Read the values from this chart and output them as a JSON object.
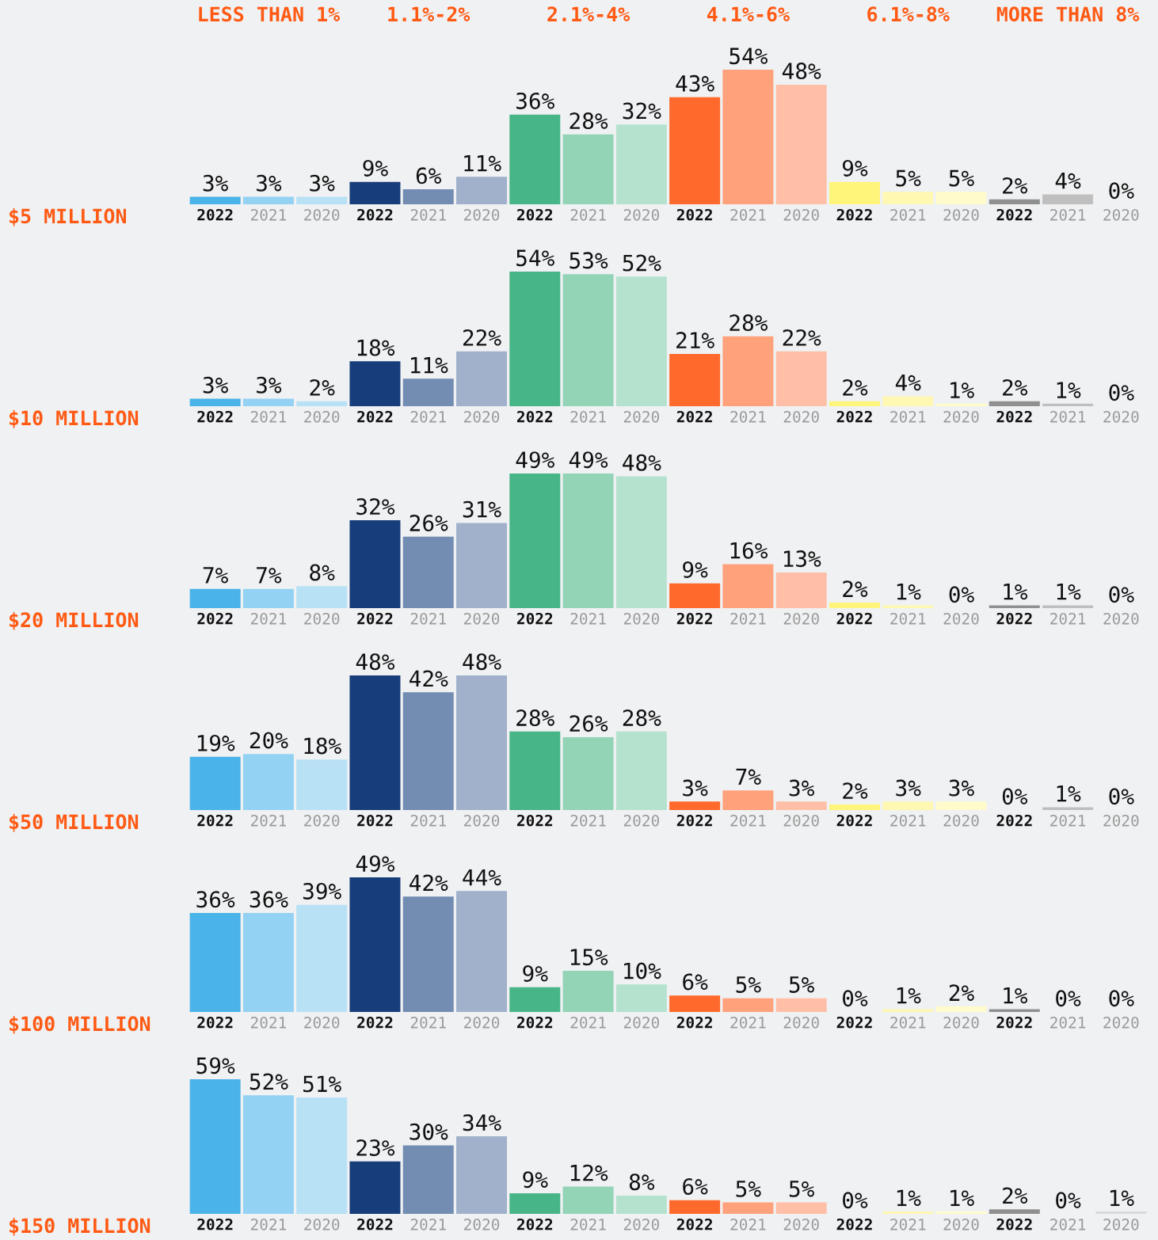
{
  "chart_data": [
    {
      "type": "bar",
      "ylabel": "$5 MILLION",
      "annotations": [
        "LESS THAN 1%",
        "1.1%-2%",
        "2.1%-4%",
        "4.1%-6%",
        "6.1%-8%",
        "MORE THAN 8%"
      ],
      "categories": [
        "2022",
        "2021",
        "2020",
        "2022",
        "2021",
        "2020",
        "2022",
        "2021",
        "2020",
        "2022",
        "2021",
        "2020",
        "2022",
        "2021",
        "2020",
        "2022",
        "2021",
        "2020"
      ],
      "values": [
        3,
        3,
        3,
        9,
        6,
        11,
        36,
        28,
        32,
        43,
        54,
        48,
        9,
        5,
        5,
        2,
        4,
        0
      ],
      "colors": [
        "#4ab3e9",
        "#93d2f3",
        "#b8e1f6",
        "#173d7a",
        "#738db2",
        "#a1b1cb",
        "#48b588",
        "#93d3b6",
        "#b5e2ce",
        "#ff6a2c",
        "#ffa17a",
        "#ffbfa6",
        "#fff57a",
        "#fff8b3",
        "#fffbcb",
        "#909090",
        "#bfbfbf",
        "#d9d9d9"
      ],
      "value_labels": [
        "3%",
        "3%",
        "3%",
        "9%",
        "6%",
        "11%",
        "36%",
        "28%",
        "32%",
        "43%",
        "54%",
        "48%",
        "9%",
        "5%",
        "5%",
        "2%",
        "4%",
        "0%"
      ]
    },
    {
      "type": "bar",
      "ylabel": "$10 MILLION",
      "categories": [
        "2022",
        "2021",
        "2020",
        "2022",
        "2021",
        "2020",
        "2022",
        "2021",
        "2020",
        "2022",
        "2021",
        "2020",
        "2022",
        "2021",
        "2020",
        "2022",
        "2021",
        "2020"
      ],
      "values": [
        3,
        3,
        2,
        18,
        11,
        22,
        54,
        53,
        52,
        21,
        28,
        22,
        2,
        4,
        1,
        2,
        1,
        0
      ],
      "colors": [
        "#4ab3e9",
        "#93d2f3",
        "#b8e1f6",
        "#173d7a",
        "#738db2",
        "#a1b1cb",
        "#48b588",
        "#93d3b6",
        "#b5e2ce",
        "#ff6a2c",
        "#ffa17a",
        "#ffbfa6",
        "#fff57a",
        "#fff8b3",
        "#fffbcb",
        "#909090",
        "#bfbfbf",
        "#d9d9d9"
      ],
      "value_labels": [
        "3%",
        "3%",
        "2%",
        "18%",
        "11%",
        "22%",
        "54%",
        "53%",
        "52%",
        "21%",
        "28%",
        "22%",
        "2%",
        "4%",
        "1%",
        "2%",
        "1%",
        "0%"
      ]
    },
    {
      "type": "bar",
      "ylabel": "$20 MILLION",
      "categories": [
        "2022",
        "2021",
        "2020",
        "2022",
        "2021",
        "2020",
        "2022",
        "2021",
        "2020",
        "2022",
        "2021",
        "2020",
        "2022",
        "2021",
        "2020",
        "2022",
        "2021",
        "2020"
      ],
      "values": [
        7,
        7,
        8,
        32,
        26,
        31,
        49,
        49,
        48,
        9,
        16,
        13,
        2,
        1,
        0,
        1,
        1,
        0
      ],
      "colors": [
        "#4ab3e9",
        "#93d2f3",
        "#b8e1f6",
        "#173d7a",
        "#738db2",
        "#a1b1cb",
        "#48b588",
        "#93d3b6",
        "#b5e2ce",
        "#ff6a2c",
        "#ffa17a",
        "#ffbfa6",
        "#fff57a",
        "#fff8b3",
        "#fffbcb",
        "#909090",
        "#bfbfbf",
        "#d9d9d9"
      ],
      "value_labels": [
        "7%",
        "7%",
        "8%",
        "32%",
        "26%",
        "31%",
        "49%",
        "49%",
        "48%",
        "9%",
        "16%",
        "13%",
        "2%",
        "1%",
        "0%",
        "1%",
        "1%",
        "0%"
      ]
    },
    {
      "type": "bar",
      "ylabel": "$50 MILLION",
      "categories": [
        "2022",
        "2021",
        "2020",
        "2022",
        "2021",
        "2020",
        "2022",
        "2021",
        "2020",
        "2022",
        "2021",
        "2020",
        "2022",
        "2021",
        "2020",
        "2022",
        "2021",
        "2020"
      ],
      "values": [
        19,
        20,
        18,
        48,
        42,
        48,
        28,
        26,
        28,
        3,
        7,
        3,
        2,
        3,
        3,
        0,
        1,
        0
      ],
      "colors": [
        "#4ab3e9",
        "#93d2f3",
        "#b8e1f6",
        "#173d7a",
        "#738db2",
        "#a1b1cb",
        "#48b588",
        "#93d3b6",
        "#b5e2ce",
        "#ff6a2c",
        "#ffa17a",
        "#ffbfa6",
        "#fff57a",
        "#fff8b3",
        "#fffbcb",
        "#909090",
        "#bfbfbf",
        "#d9d9d9"
      ],
      "value_labels": [
        "19%",
        "20%",
        "18%",
        "48%",
        "42%",
        "48%",
        "28%",
        "26%",
        "28%",
        "3%",
        "7%",
        "3%",
        "2%",
        "3%",
        "3%",
        "0%",
        "1%",
        "0%"
      ]
    },
    {
      "type": "bar",
      "ylabel": "$100 MILLION",
      "categories": [
        "2022",
        "2021",
        "2020",
        "2022",
        "2021",
        "2020",
        "2022",
        "2021",
        "2020",
        "2022",
        "2021",
        "2020",
        "2022",
        "2021",
        "2020",
        "2022",
        "2021",
        "2020"
      ],
      "values": [
        36,
        36,
        39,
        49,
        42,
        44,
        9,
        15,
        10,
        6,
        5,
        5,
        0,
        1,
        2,
        1,
        0,
        0
      ],
      "colors": [
        "#4ab3e9",
        "#93d2f3",
        "#b8e1f6",
        "#173d7a",
        "#738db2",
        "#a1b1cb",
        "#48b588",
        "#93d3b6",
        "#b5e2ce",
        "#ff6a2c",
        "#ffa17a",
        "#ffbfa6",
        "#fff57a",
        "#fff8b3",
        "#fffbcb",
        "#909090",
        "#bfbfbf",
        "#d9d9d9"
      ],
      "value_labels": [
        "36%",
        "36%",
        "39%",
        "49%",
        "42%",
        "44%",
        "9%",
        "15%",
        "10%",
        "6%",
        "5%",
        "5%",
        "0%",
        "1%",
        "2%",
        "1%",
        "0%",
        "0%"
      ]
    },
    {
      "type": "bar",
      "ylabel": "$150 MILLION",
      "categories": [
        "2022",
        "2021",
        "2020",
        "2022",
        "2021",
        "2020",
        "2022",
        "2021",
        "2020",
        "2022",
        "2021",
        "2020",
        "2022",
        "2021",
        "2020",
        "2022",
        "2021",
        "2020"
      ],
      "values": [
        59,
        52,
        51,
        23,
        30,
        34,
        9,
        12,
        8,
        6,
        5,
        5,
        0,
        1,
        1,
        2,
        0,
        1
      ],
      "colors": [
        "#4ab3e9",
        "#93d2f3",
        "#b8e1f6",
        "#173d7a",
        "#738db2",
        "#a1b1cb",
        "#48b588",
        "#93d3b6",
        "#b5e2ce",
        "#ff6a2c",
        "#ffa17a",
        "#ffbfa6",
        "#fff57a",
        "#fff8b3",
        "#fffbcb",
        "#909090",
        "#bfbfbf",
        "#d9d9d9"
      ],
      "value_labels": [
        "59%",
        "52%",
        "51%",
        "23%",
        "30%",
        "34%",
        "9%",
        "12%",
        "8%",
        "6%",
        "5%",
        "5%",
        "0%",
        "1%",
        "1%",
        "2%",
        "0%",
        "1%"
      ]
    }
  ]
}
